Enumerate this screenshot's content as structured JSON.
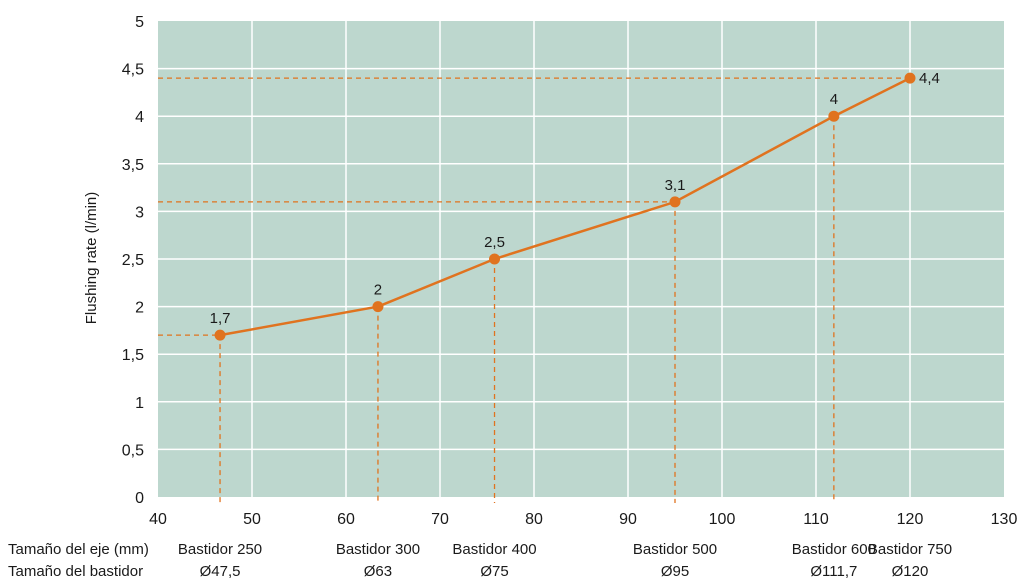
{
  "chart_data": {
    "type": "line",
    "ylabel": "Flushing rate (l/min)",
    "xlim": [
      40,
      130
    ],
    "ylim": [
      0,
      5
    ],
    "xticks": [
      40,
      50,
      60,
      70,
      80,
      90,
      100,
      110,
      120,
      130
    ],
    "xtick_labels": [
      "40",
      "50",
      "60",
      "70",
      "80",
      "90",
      "100",
      "110",
      "120",
      "130"
    ],
    "yticks": [
      0,
      0.5,
      1,
      1.5,
      2,
      2.5,
      3,
      3.5,
      4,
      4.5,
      5
    ],
    "ytick_labels": [
      "0",
      "0,5",
      "1",
      "1,5",
      "2",
      "2,5",
      "3",
      "3,5",
      "4",
      "4,5",
      "5"
    ],
    "grid": true,
    "series": [
      {
        "x": [
          46.6,
          63.4,
          75.8,
          95.0,
          111.9,
          120.0
        ],
        "y": [
          1.7,
          2.0,
          2.5,
          3.1,
          4.0,
          4.4
        ],
        "labels": [
          "1,7",
          "2",
          "2,5",
          "3,1",
          "4",
          "4,4"
        ]
      }
    ],
    "reference_lines": {
      "vertical_at_x": [
        46.6,
        63.4,
        75.8,
        95.0,
        111.9
      ],
      "horizontal_at_y": [
        1.7,
        3.1,
        4.4
      ]
    },
    "category_rows": {
      "row_labels": [
        "Tamaño del eje (mm)",
        "Tamaño del bastidor"
      ],
      "categories": [
        {
          "x": 46.6,
          "frame": "Bastidor 250",
          "shaft": "Ø47,5"
        },
        {
          "x": 63.4,
          "frame": "Bastidor 300",
          "shaft": "Ø63"
        },
        {
          "x": 75.8,
          "frame": "Bastidor 400",
          "shaft": "Ø75"
        },
        {
          "x": 95.0,
          "frame": "Bastidor 500",
          "shaft": "Ø95"
        },
        {
          "x": 111.9,
          "frame": "Bastidor 600",
          "shaft": "Ø111,7"
        },
        {
          "x": 120.0,
          "frame": "Bastidor 750",
          "shaft": "Ø120"
        }
      ]
    },
    "colors": {
      "plot_bg": "#bdd7ce",
      "grid": "#ffffff",
      "line": "#e0731f",
      "reference": "#e0731f"
    }
  }
}
